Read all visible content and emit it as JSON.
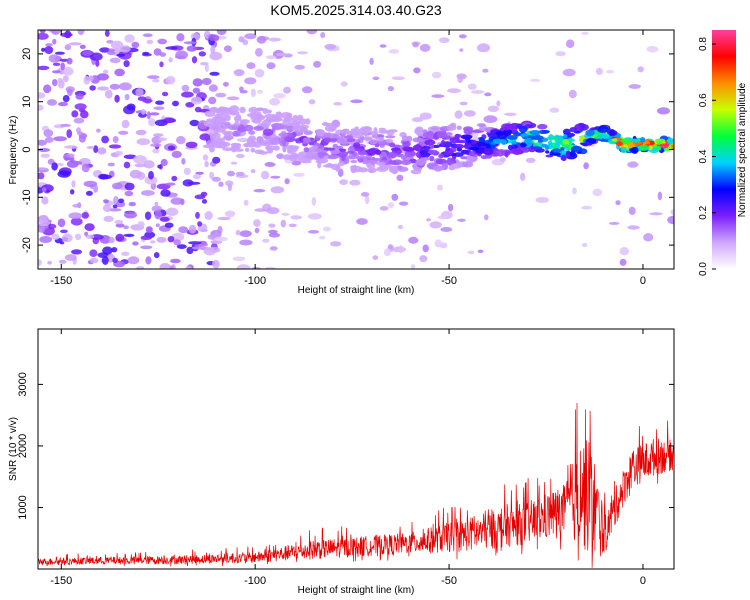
{
  "chart_data": [
    {
      "type": "heatmap",
      "title": "KOM5.2025.314.03.40.G23",
      "xlabel": "Height of straight line (km)",
      "ylabel": "Frequency (Hz)",
      "xlim": [
        -156,
        8
      ],
      "ylim": [
        -25,
        25
      ],
      "x_ticks": [
        -150,
        -100,
        -50,
        0
      ],
      "y_ticks": [
        -20,
        -10,
        0,
        10,
        20
      ],
      "colorbar": {
        "label": "Normalized spectral amplitude",
        "range": [
          0,
          0.85
        ],
        "ticks": [
          0.0,
          0.2,
          0.4,
          0.6,
          0.8
        ],
        "colormap": [
          "#ffffff",
          "#cfa6ff",
          "#7b1fff",
          "#0000ff",
          "#00d2ff",
          "#00ff3a",
          "#c8ff00",
          "#ff8c00",
          "#ff0000",
          "#ff40a0"
        ]
      },
      "ridge": {
        "description_points": [
          {
            "x": -110,
            "f": 4.5,
            "amp": 0.12
          },
          {
            "x": -95,
            "f": 3.5,
            "amp": 0.15
          },
          {
            "x": -80,
            "f": 0.5,
            "amp": 0.18
          },
          {
            "x": -60,
            "f": -0.5,
            "amp": 0.2
          },
          {
            "x": -45,
            "f": 1.0,
            "amp": 0.3
          },
          {
            "x": -30,
            "f": 2.5,
            "amp": 0.45
          },
          {
            "x": -20,
            "f": 1.0,
            "amp": 0.55
          },
          {
            "x": -10,
            "f": 3.5,
            "amp": 0.6
          },
          {
            "x": -5,
            "f": 1.0,
            "amp": 0.8
          },
          {
            "x": 5,
            "f": 1.0,
            "amp": 0.85
          }
        ]
      }
    },
    {
      "type": "line",
      "title": "",
      "xlabel": "Height of straight line (km)",
      "ylabel": "SNR (10 * v/v)",
      "xlim": [
        -156,
        8
      ],
      "ylim": [
        0,
        3900
      ],
      "x_ticks": [
        -150,
        -100,
        -50,
        0
      ],
      "y_ticks": [
        1000,
        2000,
        3000
      ],
      "series": [
        {
          "name": "SNR",
          "color": "#e60000",
          "envelope": [
            {
              "x": -156,
              "base": 100,
              "amp": 150
            },
            {
              "x": -120,
              "base": 120,
              "amp": 200
            },
            {
              "x": -100,
              "base": 150,
              "amp": 250
            },
            {
              "x": -85,
              "base": 250,
              "amp": 450
            },
            {
              "x": -60,
              "base": 350,
              "amp": 500
            },
            {
              "x": -45,
              "base": 450,
              "amp": 800
            },
            {
              "x": -30,
              "base": 600,
              "amp": 1000
            },
            {
              "x": -20,
              "base": 800,
              "amp": 1200
            },
            {
              "x": -16,
              "base": 900,
              "amp": 2600
            },
            {
              "x": -13,
              "base": 700,
              "amp": 2700
            },
            {
              "x": -10,
              "base": 400,
              "amp": 900
            },
            {
              "x": -7,
              "base": 900,
              "amp": 900
            },
            {
              "x": -3,
              "base": 1500,
              "amp": 900
            },
            {
              "x": 3,
              "base": 1700,
              "amp": 900
            },
            {
              "x": 8,
              "base": 1750,
              "amp": 700
            }
          ]
        }
      ]
    }
  ]
}
